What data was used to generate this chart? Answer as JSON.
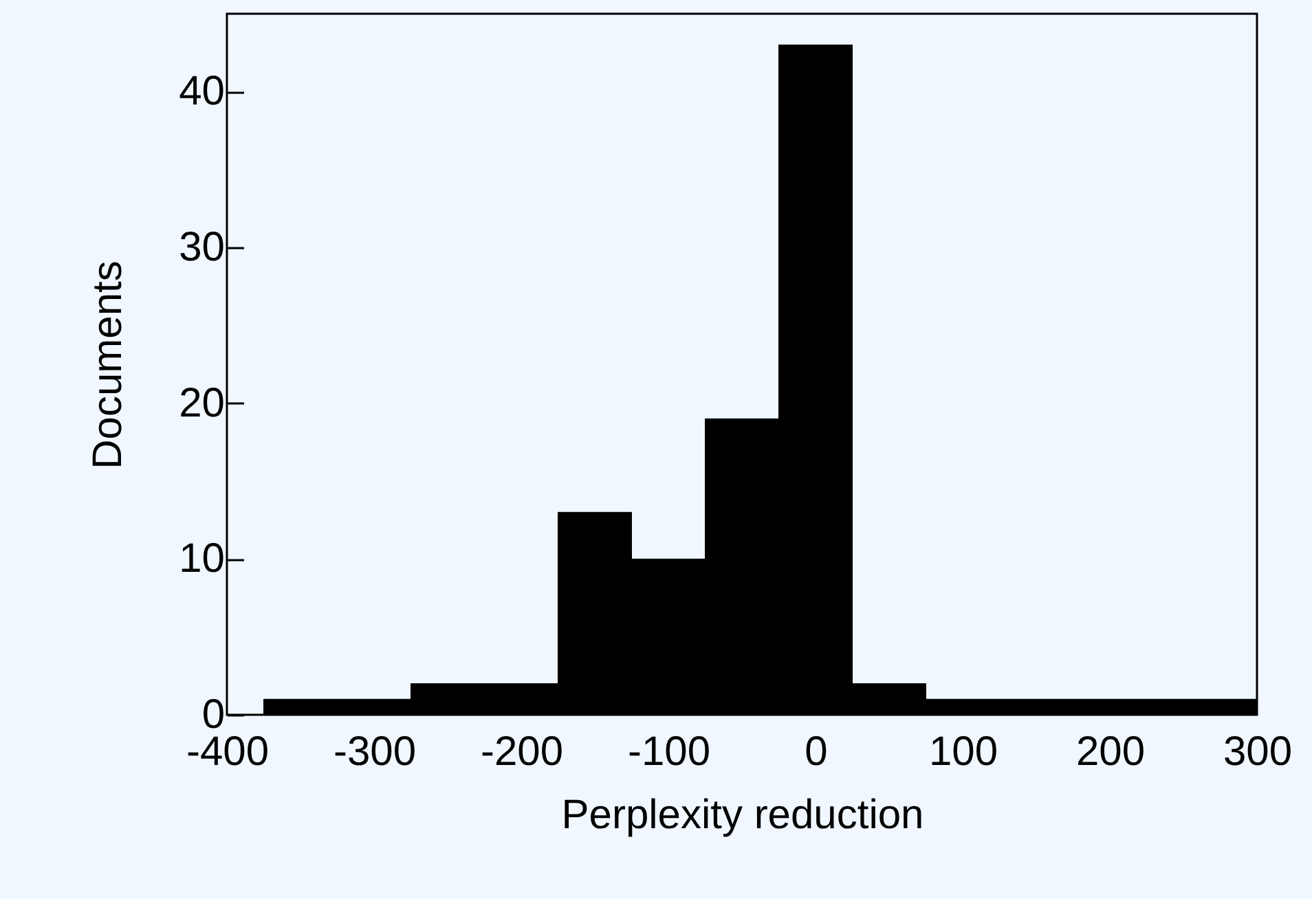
{
  "chart_data": {
    "type": "histogram",
    "xlabel": "Perplexity reduction",
    "ylabel": "Documents",
    "bins": [
      -375,
      -325,
      -275,
      -225,
      -175,
      -125,
      -75,
      -25,
      25,
      75,
      125,
      175,
      225,
      275,
      300
    ],
    "values": [
      1,
      1,
      2,
      2,
      13,
      10,
      19,
      43,
      2,
      1,
      1,
      1,
      1,
      1
    ],
    "color": "#000000",
    "xlim": [
      -400,
      300
    ],
    "xticks": [
      -400,
      -300,
      -200,
      -100,
      0,
      100,
      200,
      300
    ],
    "ylim": [
      0,
      45
    ],
    "yticks": [
      0,
      10,
      20,
      30,
      40
    ],
    "grid": false
  }
}
